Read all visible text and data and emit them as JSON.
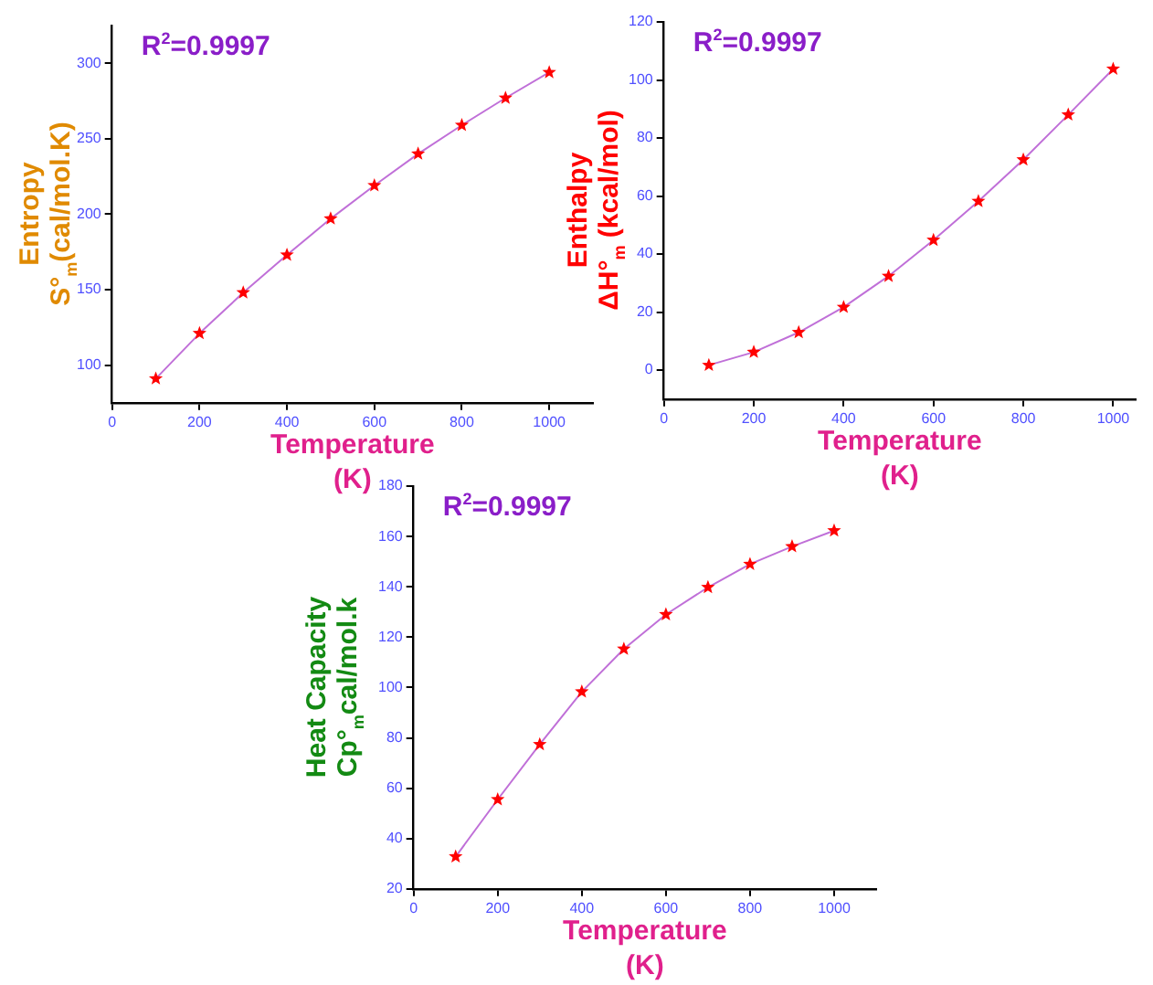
{
  "chart_data": [
    {
      "type": "line",
      "xlabel": "Temperature\n(K)",
      "ylabel": "Entropy\nS°$_{m}$(cal/mol.K)",
      "annotations": [
        "R$^{2}$=0.9997"
      ],
      "x": [
        100,
        200,
        300,
        400,
        500,
        600,
        700,
        800,
        900,
        1000
      ],
      "series": [
        {
          "color": "#ff0000",
          "values": [
            91,
            121,
            148,
            173,
            197,
            219,
            240,
            259,
            277,
            294
          ]
        }
      ],
      "xlim": [
        0,
        1100
      ],
      "xticks": [
        0,
        200,
        400,
        600,
        800,
        1000
      ],
      "ylim": [
        75,
        325
      ],
      "yticks": [
        100,
        150,
        200,
        250,
        300
      ],
      "grid": false,
      "legend": false,
      "marker": "star",
      "line_style": "solid"
    },
    {
      "type": "line",
      "xlabel": "Temperature\n(K)",
      "ylabel": "Enthalpy\nΔH°$_{m}$ (kcal/mol)",
      "annotations": [
        "R$^{2}$=0.9997"
      ],
      "x": [
        100,
        200,
        300,
        400,
        500,
        600,
        700,
        800,
        900,
        1000
      ],
      "series": [
        {
          "color": "#ff0000",
          "values": [
            1.7,
            6.2,
            13,
            21.7,
            32.4,
            44.8,
            58.2,
            72.5,
            88,
            103.8
          ]
        }
      ],
      "xlim": [
        0,
        1050
      ],
      "xticks": [
        0,
        200,
        400,
        600,
        800,
        1000
      ],
      "ylim": [
        -10,
        120
      ],
      "yticks": [
        0,
        20,
        40,
        60,
        80,
        100,
        120
      ],
      "grid": false,
      "legend": false,
      "marker": "star",
      "line_style": "solid"
    },
    {
      "type": "line",
      "xlabel": "Temperature\n(K)",
      "ylabel": "Heat Capacity\nCp°$_{m}$cal/mol.k",
      "annotations": [
        "R$^{2}$=0.9997"
      ],
      "x": [
        100,
        200,
        300,
        400,
        500,
        600,
        700,
        800,
        900,
        1000
      ],
      "series": [
        {
          "color": "#ff0000",
          "values": [
            32.8,
            55.5,
            77.4,
            98.3,
            115.3,
            129,
            139.8,
            149,
            156,
            162.3
          ]
        }
      ],
      "xlim": [
        0,
        1100
      ],
      "xticks": [
        0,
        200,
        400,
        600,
        800,
        1000
      ],
      "ylim": [
        20,
        180
      ],
      "yticks": [
        20,
        40,
        60,
        80,
        100,
        120,
        140,
        160,
        180
      ],
      "grid": false,
      "legend": false,
      "marker": "star",
      "line_style": "solid"
    }
  ]
}
